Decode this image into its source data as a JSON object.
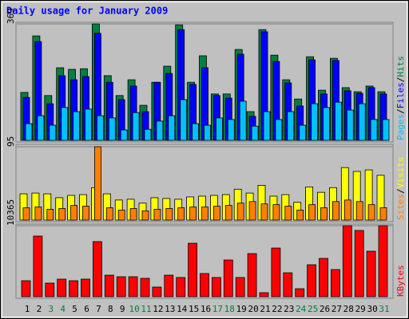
{
  "chart_data": [
    {
      "type": "bar",
      "title": "Daily usage for January 2009",
      "legend_separator": "/",
      "ylim": [
        0,
        369
      ],
      "yticks": [
        369
      ],
      "series": [
        {
          "name": "Hits",
          "color": "#008040",
          "values": [
            152,
            331,
            142,
            230,
            225,
            227,
            369,
            205,
            142,
            192,
            111,
            184,
            235,
            366,
            184,
            268,
            147,
            147,
            288,
            91,
            351,
            270,
            192,
            131,
            265,
            159,
            260,
            167,
            154,
            172,
            154
          ]
        },
        {
          "name": "Files",
          "color": "#0000ff",
          "values": [
            136,
            313,
            116,
            205,
            192,
            202,
            339,
            184,
            129,
            172,
            91,
            184,
            212,
            351,
            177,
            230,
            142,
            134,
            273,
            76,
            344,
            250,
            182,
            109,
            255,
            147,
            253,
            157,
            149,
            167,
            147
          ]
        },
        {
          "name": "Pages",
          "color": "#00c0ff",
          "values": [
            53,
            78,
            48,
            104,
            91,
            99,
            78,
            71,
            33,
            88,
            35,
            61,
            78,
            129,
            53,
            48,
            71,
            66,
            124,
            45,
            91,
            66,
            91,
            48,
            116,
            104,
            121,
            96,
            116,
            66,
            66
          ]
        }
      ]
    },
    {
      "type": "bar",
      "legend_separator": "/",
      "ylim": [
        0,
        95
      ],
      "yticks": [
        95
      ],
      "series": [
        {
          "name": "Visits",
          "color": "#ffff00",
          "values": [
            34,
            35,
            34,
            29,
            32,
            33,
            42,
            34,
            26,
            27,
            22,
            29,
            28,
            27,
            30,
            31,
            32,
            33,
            40,
            35,
            45,
            31,
            33,
            23,
            43,
            36,
            42,
            68,
            63,
            65,
            58
          ]
        },
        {
          "name": "Sites",
          "color": "#ff8000",
          "values": [
            16,
            17,
            14,
            15,
            19,
            18,
            95,
            16,
            13,
            15,
            12,
            14,
            15,
            16,
            17,
            17,
            18,
            19,
            22,
            24,
            21,
            20,
            18,
            13,
            20,
            16,
            24,
            26,
            24,
            20,
            16
          ]
        }
      ]
    },
    {
      "type": "bar",
      "ylim": [
        0,
        10365
      ],
      "yticks": [
        10365
      ],
      "categories": [
        "1",
        "2",
        "3",
        "4",
        "5",
        "6",
        "7",
        "8",
        "9",
        "10",
        "11",
        "12",
        "13",
        "14",
        "15",
        "16",
        "17",
        "18",
        "19",
        "20",
        "21",
        "22",
        "23",
        "24",
        "25",
        "26",
        "27",
        "28",
        "29",
        "30",
        "31"
      ],
      "category_colors": [
        "#000000",
        "#000000",
        "#008040",
        "#008040",
        "#000000",
        "#000000",
        "#000000",
        "#000000",
        "#000000",
        "#008040",
        "#008040",
        "#000000",
        "#000000",
        "#000000",
        "#000000",
        "#000000",
        "#008040",
        "#008040",
        "#000000",
        "#000000",
        "#000000",
        "#000000",
        "#000000",
        "#008040",
        "#008040",
        "#000000",
        "#000000",
        "#000000",
        "#000000",
        "#000000",
        "#008040"
      ],
      "series": [
        {
          "name": "KBytes",
          "color": "#ff0000",
          "values": [
            2329,
            8850,
            1980,
            2560,
            2330,
            2560,
            8040,
            3140,
            2910,
            2910,
            2680,
            1400,
            3140,
            2800,
            7800,
            3380,
            2800,
            5360,
            2800,
            6290,
            580,
            7100,
            3490,
            1160,
            4660,
            5590,
            3960,
            10365,
            9670,
            6640,
            10365
          ]
        }
      ]
    }
  ]
}
